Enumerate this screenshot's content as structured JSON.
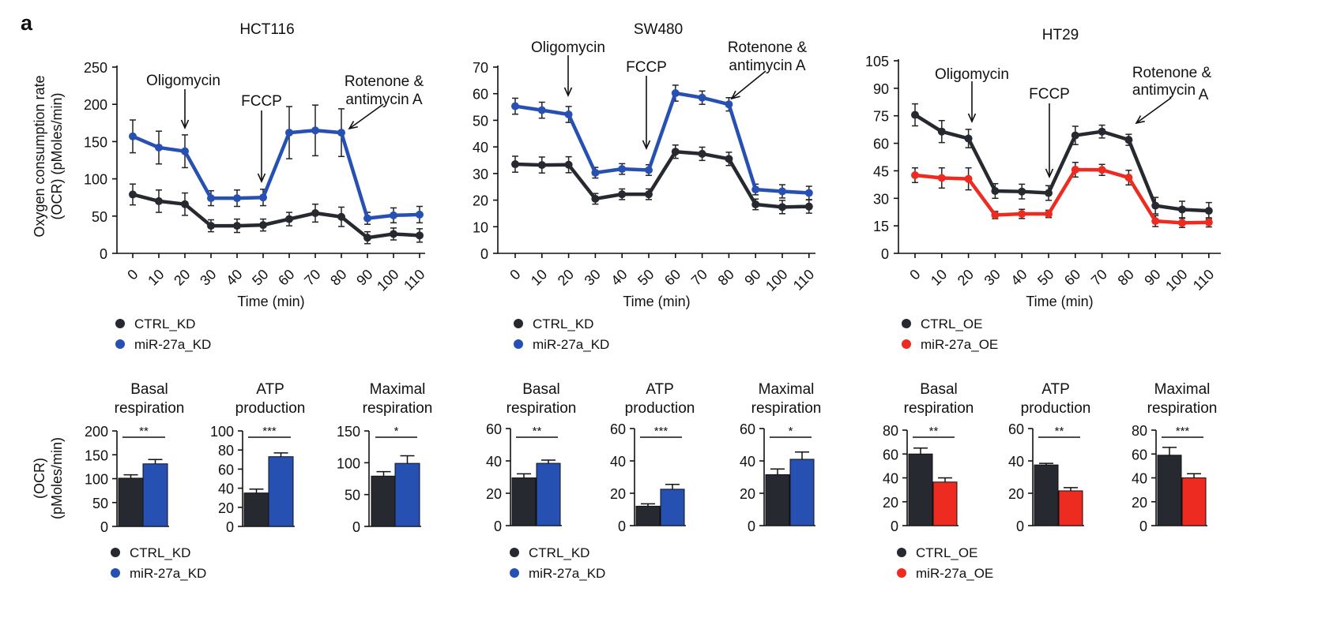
{
  "panel_letter": "a",
  "y_axis_title_line": [
    "Oxygen consumption rate",
    "(OCR) (pMoles/min)"
  ],
  "y_axis_title_bar": [
    "(OCR)",
    "(pMoles/min)"
  ],
  "colors": {
    "ctrl": "#262930",
    "blue": "#2651b3",
    "red": "#ee2b20"
  },
  "chart_data": [
    {
      "type": "line",
      "title": "HCT116",
      "xlabel": "Time (min)",
      "ylabel": "Oxygen consumption rate (OCR) (pMoles/min)",
      "x": [
        0,
        10,
        20,
        30,
        40,
        50,
        60,
        70,
        80,
        90,
        100,
        110
      ],
      "ylim": [
        0,
        250
      ],
      "yticks": [
        0,
        50,
        100,
        150,
        200,
        250
      ],
      "series": [
        {
          "name": "CTRL_KD",
          "color": "#262930",
          "values": [
            79,
            70,
            66,
            37,
            37,
            38,
            46,
            54,
            49,
            21,
            26,
            24
          ],
          "errors": [
            14,
            15,
            15,
            8,
            9,
            8,
            9,
            12,
            13,
            8,
            8,
            9
          ]
        },
        {
          "name": "miR-27a_KD",
          "color": "#2651b3",
          "values": [
            157,
            142,
            137,
            74,
            74,
            75,
            162,
            165,
            162,
            47,
            51,
            52
          ],
          "errors": [
            22,
            22,
            22,
            10,
            11,
            11,
            35,
            34,
            32,
            8,
            10,
            11
          ]
        }
      ],
      "annotations": [
        {
          "text": [
            "Oligomycin"
          ],
          "x": 20
        },
        {
          "text": [
            "FCCP"
          ],
          "x": 50
        },
        {
          "text": [
            "Rotenone &",
            "antimycin A"
          ],
          "x": 80
        }
      ]
    },
    {
      "type": "line",
      "title": "SW480",
      "xlabel": "Time (min)",
      "x": [
        2,
        12,
        22,
        32,
        42,
        52,
        62,
        72,
        82,
        92,
        102,
        112
      ],
      "ylim": [
        0,
        70
      ],
      "yticks": [
        0,
        10,
        20,
        30,
        40,
        50,
        60,
        70
      ],
      "series": [
        {
          "name": "CTRL_KD",
          "color": "#262930",
          "values": [
            33.5,
            33.2,
            33.3,
            20.5,
            22.2,
            22.2,
            38.2,
            37.4,
            35.5,
            18.4,
            17.4,
            17.6
          ],
          "errors": [
            3,
            3,
            3,
            2,
            2,
            2,
            2.5,
            2.5,
            2.5,
            2,
            2.5,
            2.5
          ]
        },
        {
          "name": "miR-27a_KD",
          "color": "#2651b3",
          "values": [
            55.3,
            53.8,
            52.2,
            30.3,
            31.7,
            31.3,
            60.2,
            58.5,
            56,
            24,
            23.3,
            22.7
          ],
          "errors": [
            3,
            3,
            3,
            2,
            2,
            2,
            3,
            2.5,
            2.5,
            2,
            2.5,
            2.5
          ]
        }
      ],
      "annotations": [
        {
          "text": [
            "Oligomycin"
          ],
          "x": 22
        },
        {
          "text": [
            "FCCP"
          ],
          "x": 52
        },
        {
          "text": [
            "Rotenone &",
            "antimycin A"
          ],
          "x": 82
        }
      ]
    },
    {
      "type": "line",
      "title": "HT29",
      "xlabel": "Time (min)",
      "x": [
        0,
        10,
        20,
        30,
        40,
        50,
        60,
        70,
        80,
        90,
        100,
        110
      ],
      "ylim": [
        0,
        105
      ],
      "yticks": [
        0,
        15,
        30,
        45,
        60,
        75,
        90,
        105
      ],
      "series": [
        {
          "name": "CTRL_OE",
          "color": "#262930",
          "values": [
            75.5,
            66.4,
            62.6,
            34,
            33.7,
            32.9,
            64.3,
            66.4,
            61.9,
            26,
            23.9,
            23.2
          ],
          "errors": [
            6,
            6,
            5,
            4,
            4,
            4,
            5,
            3.5,
            3,
            4.5,
            4.5,
            4.5
          ]
        },
        {
          "name": "miR-27a_OE",
          "color": "#ee2b20",
          "values": [
            42.6,
            41.1,
            40.6,
            20.9,
            21.5,
            21.5,
            45.6,
            45.5,
            41.3,
            17.6,
            16.6,
            16.9
          ],
          "errors": [
            4,
            5.5,
            6,
            2,
            2.5,
            2,
            4,
            3,
            4,
            3,
            2.5,
            2.5
          ]
        }
      ],
      "annotations": [
        {
          "text": [
            "Oligomycin"
          ],
          "x": 22
        },
        {
          "text": [
            "FCCP"
          ],
          "x": 51
        },
        {
          "text": [
            "Rotenone &"
          ],
          "x": 85
        },
        {
          "text": [
            "antimycin",
            "A"
          ],
          "x": 85
        }
      ]
    },
    {
      "type": "bar",
      "title": [
        "Basal",
        "respiration"
      ],
      "ylim": [
        0,
        200
      ],
      "yticks": [
        0,
        50,
        100,
        150,
        200
      ],
      "categories": [
        "CTRL_KD",
        "miR-27a_KD"
      ],
      "values": [
        101,
        131
      ],
      "errors": [
        7,
        9
      ],
      "significance": "**"
    },
    {
      "type": "bar",
      "title": [
        "ATP",
        "production"
      ],
      "ylim": [
        0,
        100
      ],
      "yticks": [
        0,
        20,
        40,
        60,
        80,
        100
      ],
      "categories": [
        "CTRL_KD",
        "miR-27a_KD"
      ],
      "values": [
        35,
        73
      ],
      "errors": [
        4,
        4
      ],
      "significance": "***"
    },
    {
      "type": "bar",
      "title": [
        "Maximal",
        "respiration"
      ],
      "ylim": [
        0,
        150
      ],
      "yticks": [
        0,
        50,
        100,
        150
      ],
      "categories": [
        "CTRL_KD",
        "miR-27a_KD"
      ],
      "values": [
        79,
        99
      ],
      "errors": [
        7,
        12
      ],
      "significance": "*"
    },
    {
      "type": "bar",
      "title": [
        "Basal",
        "respiration"
      ],
      "ylim": [
        0,
        60
      ],
      "yticks": [
        0,
        20,
        40,
        60
      ],
      "categories": [
        "CTRL_KD",
        "miR-27a_KD"
      ],
      "values": [
        29.5,
        38.5
      ],
      "errors": [
        2.5,
        2
      ],
      "significance": "**"
    },
    {
      "type": "bar",
      "title": [
        "ATP",
        "production"
      ],
      "ylim": [
        0,
        60
      ],
      "yticks": [
        0,
        20,
        40,
        60
      ],
      "categories": [
        "CTRL_KD",
        "miR-27a_KD"
      ],
      "values": [
        12,
        22.5
      ],
      "errors": [
        1.5,
        3
      ],
      "significance": "***"
    },
    {
      "type": "bar",
      "title": [
        "Maximal",
        "respiration"
      ],
      "ylim": [
        0,
        60
      ],
      "yticks": [
        0,
        20,
        40,
        60
      ],
      "categories": [
        "CTRL_KD",
        "miR-27a_KD"
      ],
      "values": [
        31.5,
        41
      ],
      "errors": [
        3.5,
        4.5
      ],
      "significance": "*"
    },
    {
      "type": "bar",
      "title": [
        "Basal",
        "respiration"
      ],
      "ylim": [
        0,
        80
      ],
      "yticks": [
        0,
        20,
        40,
        60,
        80
      ],
      "categories": [
        "CTRL_OE",
        "miR-27a_OE"
      ],
      "values": [
        60,
        36.5
      ],
      "errors": [
        5,
        3.5
      ],
      "significance": "**"
    },
    {
      "type": "bar",
      "title": [
        "ATP",
        "production"
      ],
      "ylim": [
        0,
        60
      ],
      "yticks": [
        0,
        20,
        40,
        60
      ],
      "categories": [
        "CTRL_OE",
        "miR-27a_OE"
      ],
      "values": [
        37.5,
        21.5
      ],
      "errors": [
        1,
        2
      ],
      "significance": "**"
    },
    {
      "type": "bar",
      "title": [
        "Maximal",
        "respiration"
      ],
      "ylim": [
        0,
        80
      ],
      "yticks": [
        0,
        20,
        40,
        60,
        80
      ],
      "categories": [
        "CTRL_OE",
        "miR-27a_OE"
      ],
      "values": [
        59,
        40
      ],
      "errors": [
        6.5,
        3.5
      ],
      "significance": "***"
    }
  ],
  "legends": [
    [
      {
        "label": "CTRL_KD",
        "color": "#262930"
      },
      {
        "label": "miR-27a_KD",
        "color": "#2651b3"
      }
    ],
    [
      {
        "label": "CTRL_KD",
        "color": "#262930"
      },
      {
        "label": "miR-27a_KD",
        "color": "#2651b3"
      }
    ],
    [
      {
        "label": "CTRL_OE",
        "color": "#262930"
      },
      {
        "label": "miR-27a_OE",
        "color": "#ee2b20"
      }
    ],
    [
      {
        "label": "CTRL_KD",
        "color": "#262930"
      },
      {
        "label": "miR-27a_KD",
        "color": "#2651b3"
      }
    ],
    [
      {
        "label": "CTRL_KD",
        "color": "#262930"
      },
      {
        "label": "miR-27a_KD",
        "color": "#2651b3"
      }
    ],
    [
      {
        "label": "CTRL_OE",
        "color": "#262930"
      },
      {
        "label": "miR-27a_OE",
        "color": "#ee2b20"
      }
    ]
  ]
}
